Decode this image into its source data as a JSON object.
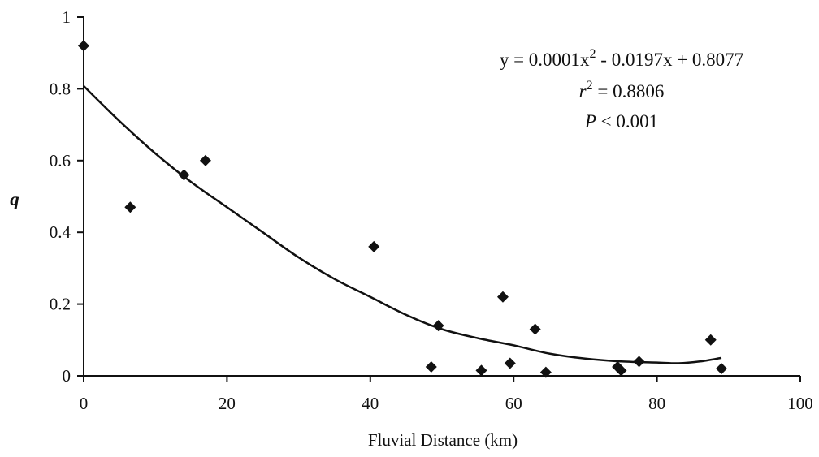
{
  "chart_data": {
    "type": "scatter",
    "xlabel": "Fluvial Distance (km)",
    "ylabel": "q",
    "xlim": [
      0,
      100
    ],
    "ylim": [
      0,
      1
    ],
    "xticks": [
      "0",
      "20",
      "40",
      "60",
      "80",
      "100"
    ],
    "yticks": [
      "0",
      "0.2",
      "0.4",
      "0.6",
      "0.8",
      "1"
    ],
    "grid": false,
    "marker": "diamond",
    "points": [
      {
        "x": 0,
        "y": 0.92
      },
      {
        "x": 6.5,
        "y": 0.47
      },
      {
        "x": 14,
        "y": 0.56
      },
      {
        "x": 17,
        "y": 0.6
      },
      {
        "x": 40.5,
        "y": 0.36
      },
      {
        "x": 48.5,
        "y": 0.025
      },
      {
        "x": 49.5,
        "y": 0.14
      },
      {
        "x": 55.5,
        "y": 0.015
      },
      {
        "x": 58.5,
        "y": 0.22
      },
      {
        "x": 59.5,
        "y": 0.035
      },
      {
        "x": 63,
        "y": 0.13
      },
      {
        "x": 64.5,
        "y": 0.01
      },
      {
        "x": 74.5,
        "y": 0.025
      },
      {
        "x": 75,
        "y": 0.015
      },
      {
        "x": 77.5,
        "y": 0.04
      },
      {
        "x": 87.5,
        "y": 0.1
      },
      {
        "x": 89,
        "y": 0.02
      }
    ],
    "trendline": {
      "type": "polynomial",
      "x_range": [
        0,
        89
      ],
      "points": [
        {
          "x": 0,
          "y": 0.808
        },
        {
          "x": 5,
          "y": 0.71
        },
        {
          "x": 10,
          "y": 0.62
        },
        {
          "x": 15,
          "y": 0.54
        },
        {
          "x": 20,
          "y": 0.47
        },
        {
          "x": 25,
          "y": 0.4
        },
        {
          "x": 30,
          "y": 0.33
        },
        {
          "x": 35,
          "y": 0.27
        },
        {
          "x": 40,
          "y": 0.22
        },
        {
          "x": 45,
          "y": 0.17
        },
        {
          "x": 50,
          "y": 0.13
        },
        {
          "x": 55,
          "y": 0.105
        },
        {
          "x": 60,
          "y": 0.085
        },
        {
          "x": 65,
          "y": 0.062
        },
        {
          "x": 70,
          "y": 0.048
        },
        {
          "x": 75,
          "y": 0.04
        },
        {
          "x": 80,
          "y": 0.037
        },
        {
          "x": 83,
          "y": 0.035
        },
        {
          "x": 86,
          "y": 0.04
        },
        {
          "x": 89,
          "y": 0.05
        }
      ]
    },
    "annotations": {
      "equation": {
        "base": "y = 0.0001x",
        "sup": "2",
        "rest": " - 0.0197x + 0.8077"
      },
      "r_squared": {
        "var": "r",
        "sup": "2",
        "rest": " = 0.8806"
      },
      "p_value": {
        "var": "P",
        "rest": " < 0.001"
      }
    }
  }
}
